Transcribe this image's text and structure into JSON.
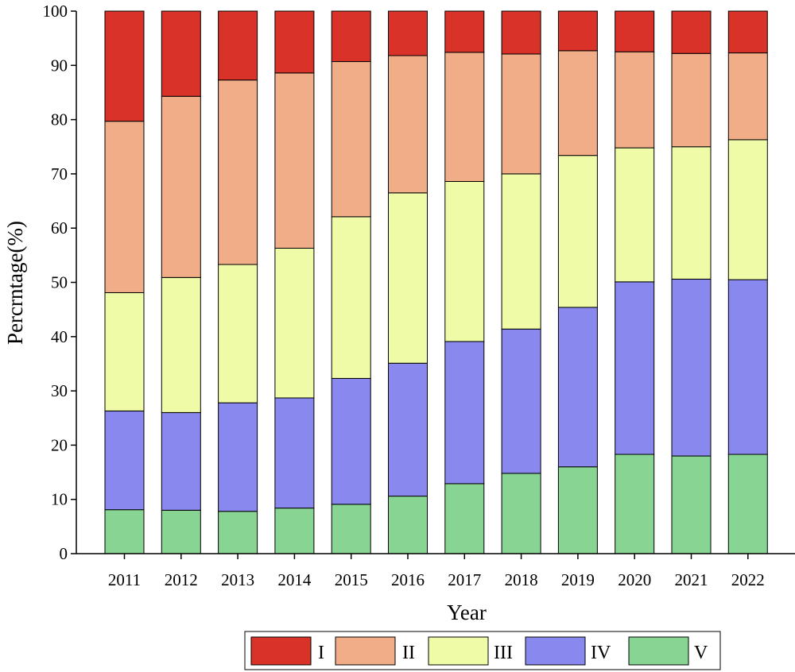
{
  "chart_data": {
    "type": "bar",
    "stacked": true,
    "title": "",
    "xlabel": "Year",
    "ylabel": "Percrntage(%)",
    "ylim": [
      0,
      100
    ],
    "yticks": [
      "0",
      "10",
      "20",
      "30",
      "40",
      "50",
      "60",
      "70",
      "80",
      "90",
      "100"
    ],
    "categories": [
      "2011",
      "2012",
      "2013",
      "2014",
      "2015",
      "2016",
      "2017",
      "2018",
      "2019",
      "2020",
      "2021",
      "2022"
    ],
    "series": [
      {
        "name": "V",
        "color": "#88d493",
        "values": [
          8.1,
          8.0,
          7.8,
          8.4,
          9.1,
          10.6,
          12.9,
          14.8,
          16.0,
          18.3,
          18.0,
          18.3
        ]
      },
      {
        "name": "IV",
        "color": "#8888ee",
        "values": [
          18.2,
          18.0,
          20.0,
          20.3,
          23.2,
          24.5,
          26.2,
          26.6,
          29.4,
          31.8,
          32.6,
          32.2
        ]
      },
      {
        "name": "III",
        "color": "#f0fba7",
        "values": [
          21.8,
          24.9,
          25.5,
          27.6,
          29.8,
          31.4,
          29.5,
          28.6,
          28.0,
          24.7,
          24.4,
          25.8
        ]
      },
      {
        "name": "II",
        "color": "#f0ad88",
        "values": [
          31.6,
          33.4,
          34.0,
          32.3,
          28.6,
          25.3,
          23.8,
          22.1,
          19.3,
          17.7,
          17.2,
          16.0
        ]
      },
      {
        "name": "I",
        "color": "#d93228",
        "values": [
          20.3,
          15.7,
          12.7,
          11.4,
          9.3,
          8.2,
          7.6,
          7.9,
          7.3,
          7.5,
          7.8,
          7.7
        ]
      }
    ],
    "legend": {
      "position": "bottom",
      "order": [
        "I",
        "II",
        "III",
        "IV",
        "V"
      ]
    }
  }
}
